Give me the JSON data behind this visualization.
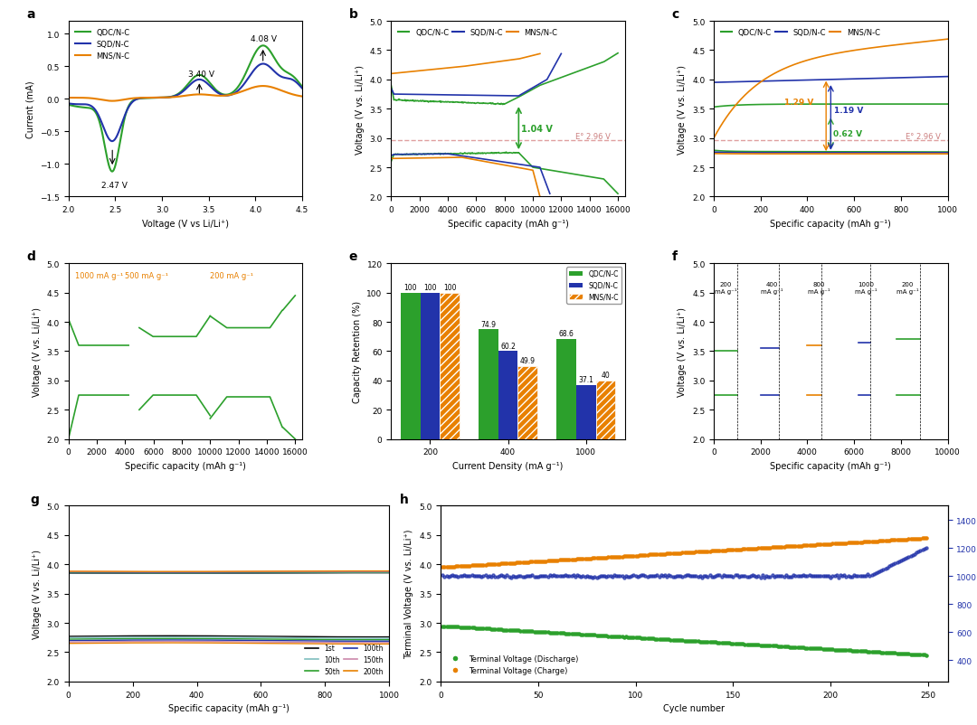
{
  "colors": {
    "green": "#2ca02c",
    "blue": "#2233aa",
    "orange": "#e88000",
    "pink_dashed": "#e0a0a0"
  },
  "panel_labels": [
    "a",
    "b",
    "c",
    "d",
    "e",
    "f",
    "g",
    "h"
  ],
  "bar_e": {
    "categories": [
      "200",
      "400",
      "1000"
    ],
    "qdc": [
      100,
      74.9,
      68.6
    ],
    "sqd": [
      100,
      60.2,
      37.1
    ],
    "mns": [
      100,
      49.9,
      40
    ]
  }
}
